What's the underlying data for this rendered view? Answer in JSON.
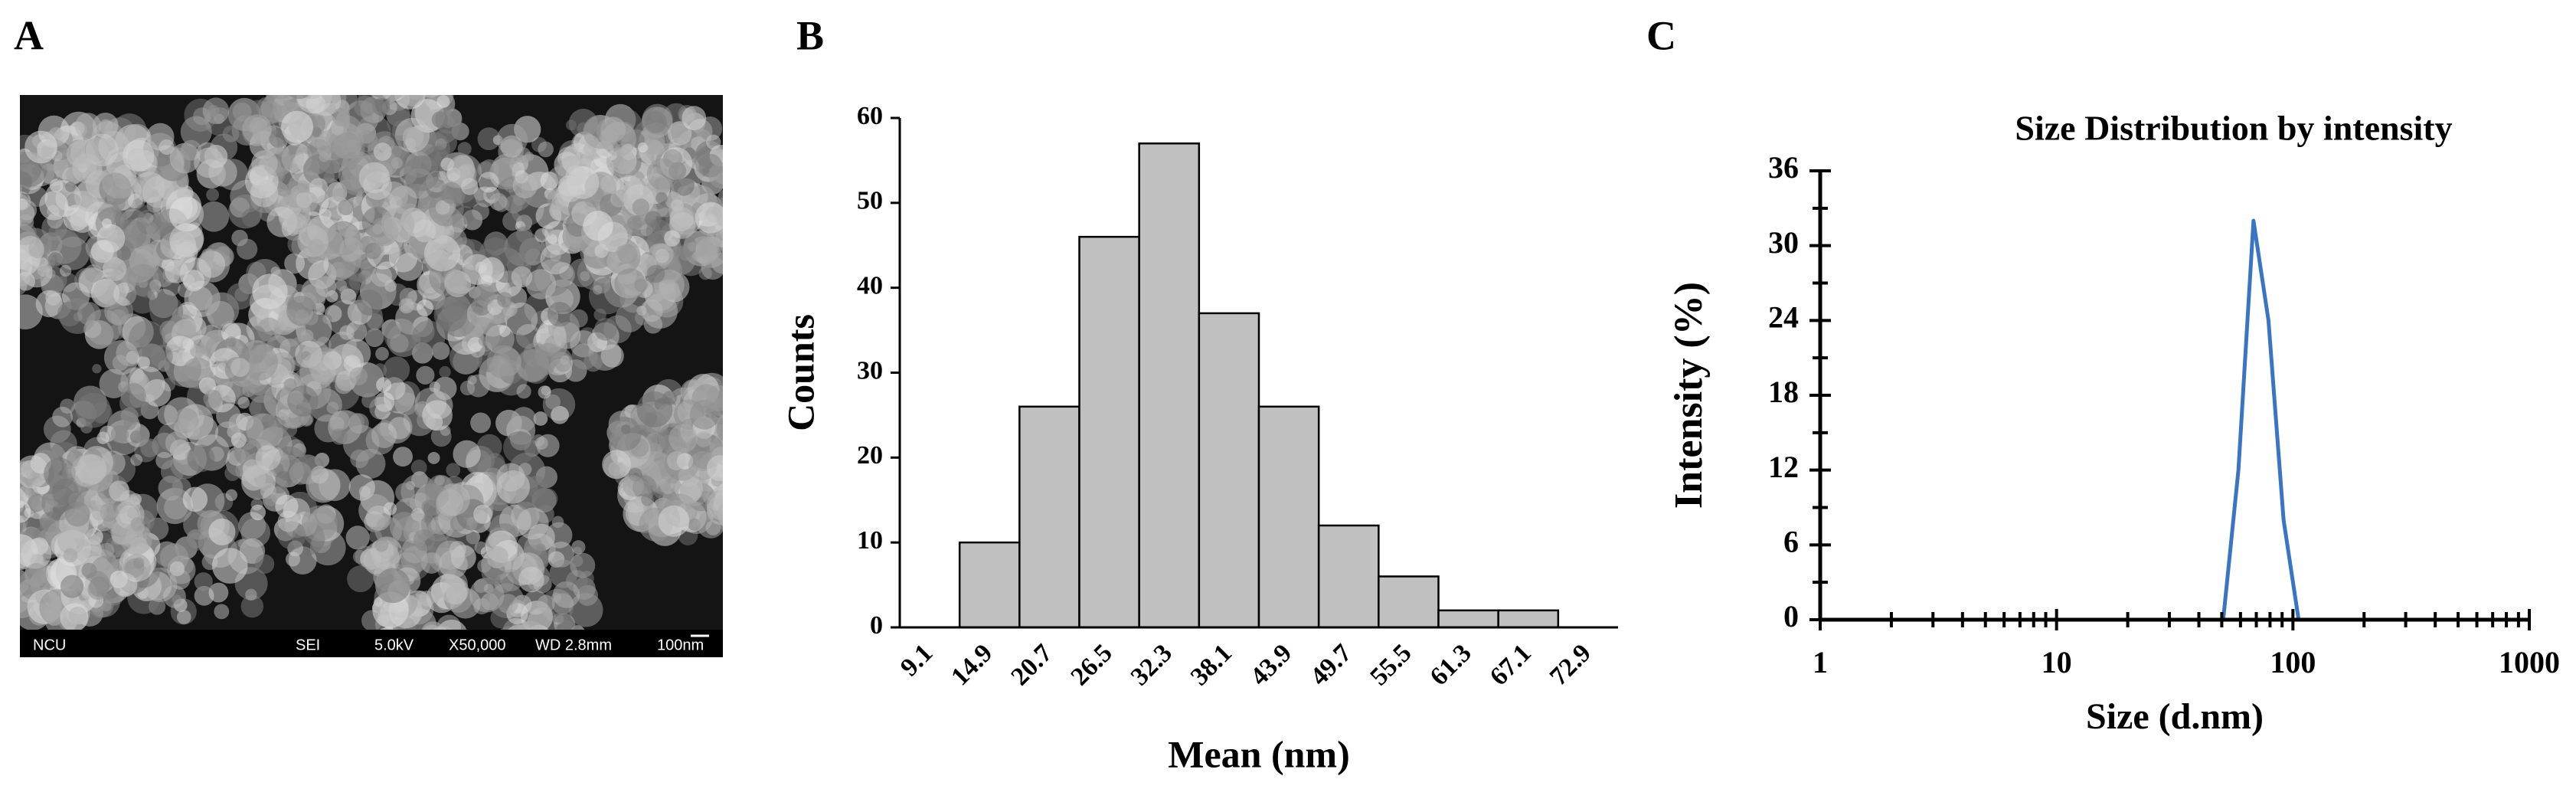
{
  "figure": {
    "panel_labels": [
      "A",
      "B",
      "C"
    ],
    "sem_labels": [
      "NCU",
      "SEI",
      "5.0kV",
      "X50,000",
      "WD 2.8mm",
      "100nm"
    ]
  },
  "chart_data": [
    {
      "type": "bar",
      "xlabel": "Mean (nm)",
      "ylabel": "Counts",
      "categories": [
        "9.1",
        "14.9",
        "20.7",
        "26.5",
        "32.3",
        "38.1",
        "43.9",
        "49.7",
        "55.5",
        "61.3",
        "67.1",
        "72.9"
      ],
      "values": [
        0,
        10,
        26,
        46,
        57,
        37,
        26,
        12,
        6,
        2,
        2,
        0
      ],
      "color": "#c0c0c0",
      "edgecolor": "#000000",
      "ylim": [
        0,
        60
      ],
      "yticks": [
        0,
        10,
        20,
        30,
        40,
        50,
        60
      ]
    },
    {
      "type": "line",
      "title": "Size Distribution by intensity",
      "xlabel": "Size (d.nm)",
      "ylabel": "Intensity (%)",
      "xscale": "log",
      "x": [
        43.8,
        50.7,
        58.8,
        68.1,
        78.8,
        91.3,
        105.7,
        122.4
      ],
      "values": [
        0,
        0,
        12,
        32,
        24,
        8,
        0,
        0
      ],
      "color": "#3a75c4",
      "xlim": [
        1,
        1000
      ],
      "xticks": [
        1,
        10,
        100,
        1000
      ],
      "xminorticks": [
        2,
        3,
        4,
        5,
        6,
        7,
        8,
        9,
        20,
        30,
        40,
        50,
        60,
        70,
        80,
        90,
        200,
        300,
        400,
        500,
        600,
        700,
        800,
        900
      ],
      "ylim": [
        0,
        36
      ],
      "yticks": [
        0,
        6,
        12,
        18,
        24,
        30,
        36
      ],
      "yminorticks": [
        3,
        9,
        15,
        21,
        27,
        33
      ]
    }
  ]
}
